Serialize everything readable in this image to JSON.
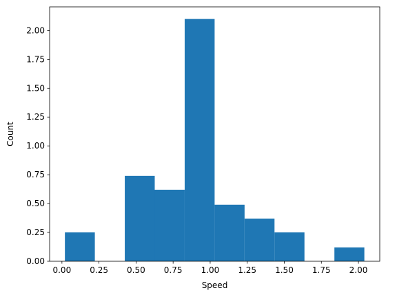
{
  "chart_data": {
    "type": "bar",
    "subtype": "histogram",
    "title": "",
    "xlabel": "Speed",
    "ylabel": "Count",
    "xlim": [
      -0.083,
      2.144
    ],
    "ylim": [
      0,
      2.205
    ],
    "bins": [
      {
        "x0": 0.02,
        "x1": 0.222,
        "value": 0.25
      },
      {
        "x0": 0.222,
        "x1": 0.424,
        "value": 0.0
      },
      {
        "x0": 0.424,
        "x1": 0.626,
        "value": 0.74
      },
      {
        "x0": 0.626,
        "x1": 0.828,
        "value": 0.62
      },
      {
        "x0": 0.828,
        "x1": 1.03,
        "value": 2.1
      },
      {
        "x0": 1.03,
        "x1": 1.232,
        "value": 0.49
      },
      {
        "x0": 1.232,
        "x1": 1.434,
        "value": 0.37
      },
      {
        "x0": 1.434,
        "x1": 1.636,
        "value": 0.25
      },
      {
        "x0": 1.636,
        "x1": 1.838,
        "value": 0.0
      },
      {
        "x0": 1.838,
        "x1": 2.04,
        "value": 0.12
      }
    ],
    "xticks": [
      0.0,
      0.25,
      0.5,
      0.75,
      1.0,
      1.25,
      1.5,
      1.75,
      2.0
    ],
    "xtick_labels": [
      "0.00",
      "0.25",
      "0.50",
      "0.75",
      "1.00",
      "1.25",
      "1.50",
      "1.75",
      "2.00"
    ],
    "yticks": [
      0.0,
      0.25,
      0.5,
      0.75,
      1.0,
      1.25,
      1.5,
      1.75,
      2.0
    ],
    "ytick_labels": [
      "0.00",
      "0.25",
      "0.50",
      "0.75",
      "1.00",
      "1.25",
      "1.50",
      "1.75",
      "2.00"
    ],
    "bar_color": "#1f77b4",
    "grid": false,
    "legend": "none"
  }
}
